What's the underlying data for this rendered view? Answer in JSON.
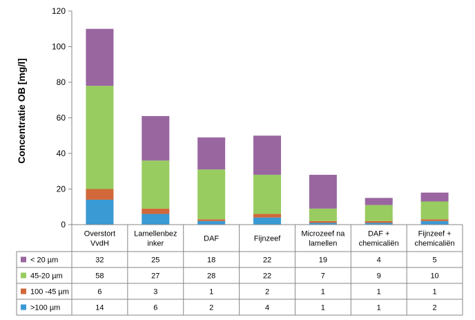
{
  "chart_data": {
    "type": "bar",
    "stacked": true,
    "ylabel": "Concentratie OB [mg/l]",
    "ylim": [
      0,
      120
    ],
    "yticks": [
      0,
      20,
      40,
      60,
      80,
      100,
      120
    ],
    "grid": false,
    "categories": [
      [
        "Overstort",
        "VvdH"
      ],
      [
        "Lamellenbez",
        "inker"
      ],
      [
        "DAF"
      ],
      [
        "Fijnzeef"
      ],
      [
        "Microzeef na",
        "lamellen"
      ],
      [
        "DAF +",
        "chemicaliën"
      ],
      [
        "Fijnzeef +",
        "chemicaliën"
      ]
    ],
    "series": [
      {
        "name": ">100 µm",
        "color": "#3a9ad4",
        "values": [
          14,
          6,
          2,
          4,
          1,
          1,
          2
        ]
      },
      {
        "name": "100 -45 µm",
        "color": "#d0683a",
        "values": [
          6,
          3,
          1,
          2,
          1,
          1,
          1
        ]
      },
      {
        "name": "45-20 µm",
        "color": "#98cc60",
        "values": [
          58,
          27,
          28,
          22,
          7,
          9,
          10
        ]
      },
      {
        "name": "< 20 µm",
        "color": "#9966a0",
        "values": [
          32,
          25,
          18,
          22,
          19,
          4,
          5
        ]
      }
    ],
    "table_order": [
      3,
      2,
      1,
      0
    ]
  }
}
